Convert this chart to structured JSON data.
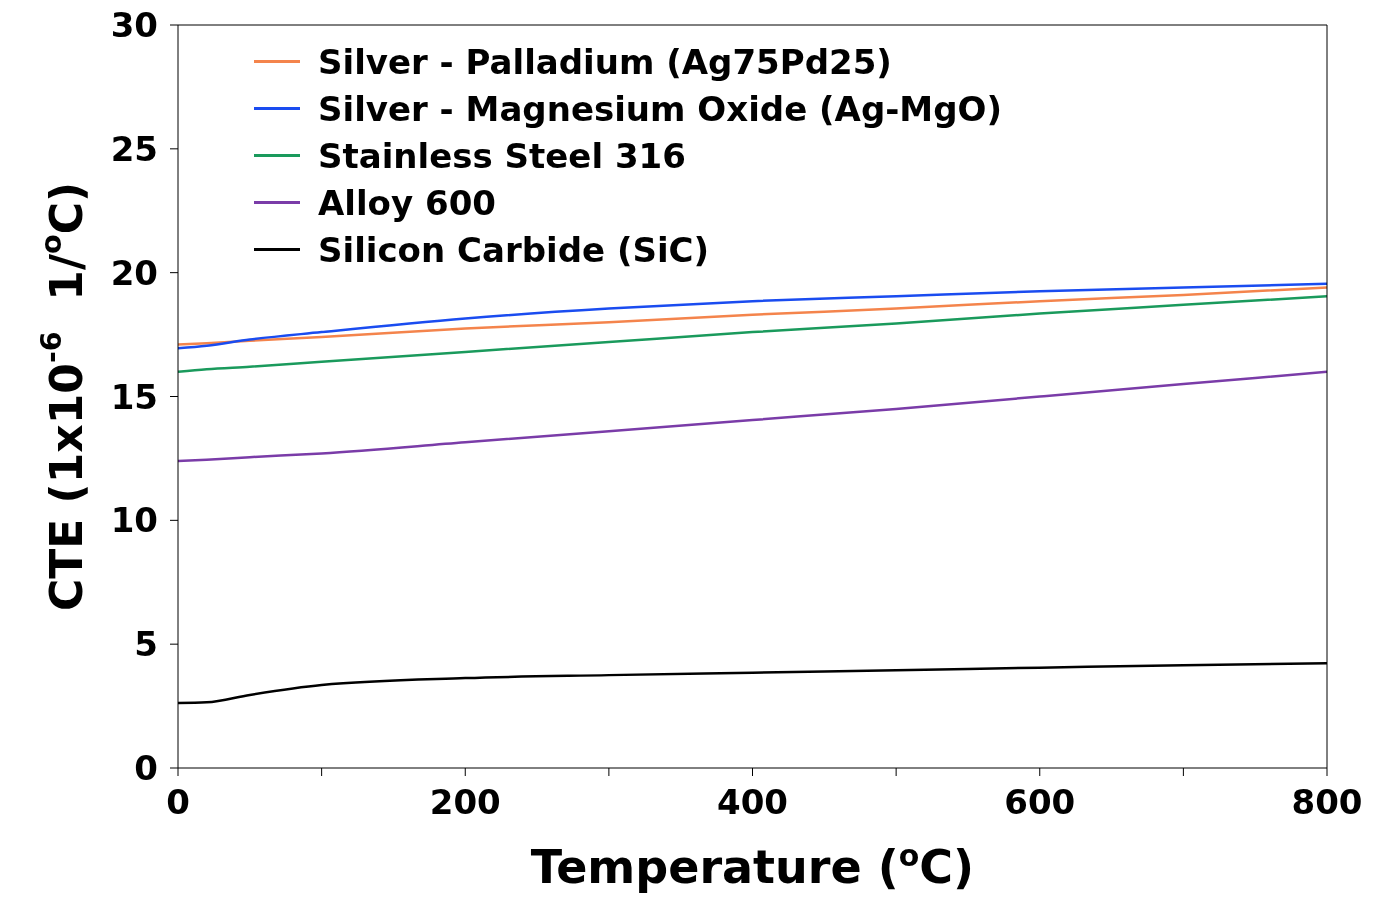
{
  "chart_data": {
    "type": "line",
    "xlabel": "Temperature ($^{o}$C)",
    "ylabel": "CTE (1x10$^{-6}$  1/$^{o}$C)",
    "x": [
      0,
      20,
      50,
      100,
      200,
      300,
      400,
      500,
      600,
      700,
      800
    ],
    "series": [
      {
        "name": "Silver - Palladium (Ag75Pd25)",
        "color": "#f4844c",
        "values": [
          17.1,
          17.15,
          17.25,
          17.4,
          17.75,
          18.0,
          18.3,
          18.55,
          18.85,
          19.1,
          19.4
        ]
      },
      {
        "name": "Silver - Magnesium Oxide (Ag-MgO)",
        "color": "#1a4cf0",
        "values": [
          16.95,
          17.05,
          17.3,
          17.6,
          18.15,
          18.55,
          18.85,
          19.05,
          19.25,
          19.4,
          19.55
        ]
      },
      {
        "name": "Stainless Steel 316",
        "color": "#1a9a5c",
        "values": [
          16.0,
          16.1,
          16.2,
          16.4,
          16.8,
          17.2,
          17.6,
          17.95,
          18.35,
          18.7,
          19.05
        ]
      },
      {
        "name": "Alloy 600",
        "color": "#7a3ca8",
        "values": [
          12.4,
          12.45,
          12.55,
          12.7,
          13.15,
          13.6,
          14.05,
          14.5,
          15.0,
          15.5,
          16.0
        ]
      },
      {
        "name": "Silicon Carbide (SiC)",
        "color": "#000000",
        "values": [
          2.62,
          2.65,
          2.95,
          3.35,
          3.63,
          3.75,
          3.85,
          3.95,
          4.05,
          4.15,
          4.23
        ]
      }
    ],
    "xlim": [
      0,
      800
    ],
    "xticks": [
      0,
      {
        "value": 100,
        "label": null
      },
      200,
      {
        "value": 300,
        "label": null
      },
      400,
      {
        "value": 500,
        "label": null
      },
      600,
      {
        "value": 700,
        "label": null
      },
      800
    ],
    "ylim": [
      0,
      30
    ],
    "yticks": [
      0,
      5,
      10,
      15,
      20,
      25,
      30
    ],
    "legend": "top left",
    "marker": "none",
    "line_style": "solid"
  }
}
